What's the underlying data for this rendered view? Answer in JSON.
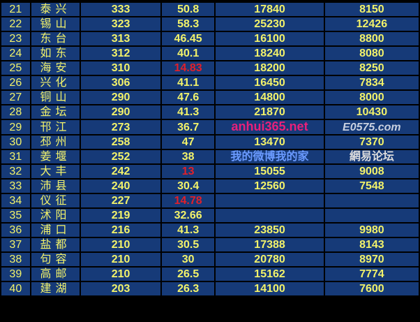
{
  "table": {
    "rows": [
      {
        "rank": "21",
        "city": "泰兴",
        "c1": "333",
        "c2": "50.8",
        "c3": "17840",
        "c4": "8150"
      },
      {
        "rank": "22",
        "city": "锡山",
        "c1": "323",
        "c2": "58.3",
        "c3": "25230",
        "c4": "12426"
      },
      {
        "rank": "23",
        "city": "东台",
        "c1": "313",
        "c2": "46.45",
        "c3": "16100",
        "c4": "8800"
      },
      {
        "rank": "24",
        "city": "如东",
        "c1": "312",
        "c2": "40.1",
        "c3": "18240",
        "c4": "8080"
      },
      {
        "rank": "25",
        "city": "海安",
        "c1": "310",
        "c2": "14.83",
        "c2_red": true,
        "c3": "18200",
        "c4": "8250"
      },
      {
        "rank": "26",
        "city": "兴化",
        "c1": "306",
        "c2": "41.1",
        "c3": "16450",
        "c4": "7834"
      },
      {
        "rank": "27",
        "city": "铜山",
        "c1": "290",
        "c2": "47.6",
        "c3": "14800",
        "c4": "8000"
      },
      {
        "rank": "28",
        "city": "金坛",
        "c1": "290",
        "c2": "41.3",
        "c3": "21870",
        "c4": "10430"
      },
      {
        "rank": "29",
        "city": "邗江",
        "c1": "273",
        "c2": "36.7",
        "c3": "",
        "c4": ""
      },
      {
        "rank": "30",
        "city": "邳州",
        "c1": "258",
        "c2": "47",
        "c3": "13470",
        "c4": "7370"
      },
      {
        "rank": "31",
        "city": "姜堰",
        "c1": "252",
        "c2": "38",
        "c3": "",
        "c4": ""
      },
      {
        "rank": "32",
        "city": "大丰",
        "c1": "242",
        "c2": "13",
        "c2_red": true,
        "c3": "15055",
        "c4": "9008"
      },
      {
        "rank": "33",
        "city": "沛县",
        "c1": "240",
        "c2": "30.4",
        "c3": "12560",
        "c4": "7548"
      },
      {
        "rank": "34",
        "city": "仪征",
        "c1": "227",
        "c2": "14.78",
        "c2_red": true,
        "c3": "",
        "c4": ""
      },
      {
        "rank": "35",
        "city": "沭阳",
        "c1": "219",
        "c2": "32.66",
        "c3": "",
        "c4": ""
      },
      {
        "rank": "36",
        "city": "浦口",
        "c1": "216",
        "c2": "41.3",
        "c3": "23850",
        "c4": "9980"
      },
      {
        "rank": "37",
        "city": "盐都",
        "c1": "210",
        "c2": "30.5",
        "c3": "17388",
        "c4": "8143"
      },
      {
        "rank": "38",
        "city": "句容",
        "c1": "210",
        "c2": "30",
        "c3": "20780",
        "c4": "8970"
      },
      {
        "rank": "39",
        "city": "高邮",
        "c1": "210",
        "c2": "26.5",
        "c3": "15162",
        "c4": "7774"
      },
      {
        "rank": "40",
        "city": "建湖",
        "c1": "203",
        "c2": "26.3",
        "c3": "14100",
        "c4": "7600"
      }
    ]
  },
  "watermarks": {
    "site1": "anhui365.net",
    "site2": "我的微博我的家",
    "site3": "E0575.com",
    "site4": "網易论坛"
  }
}
